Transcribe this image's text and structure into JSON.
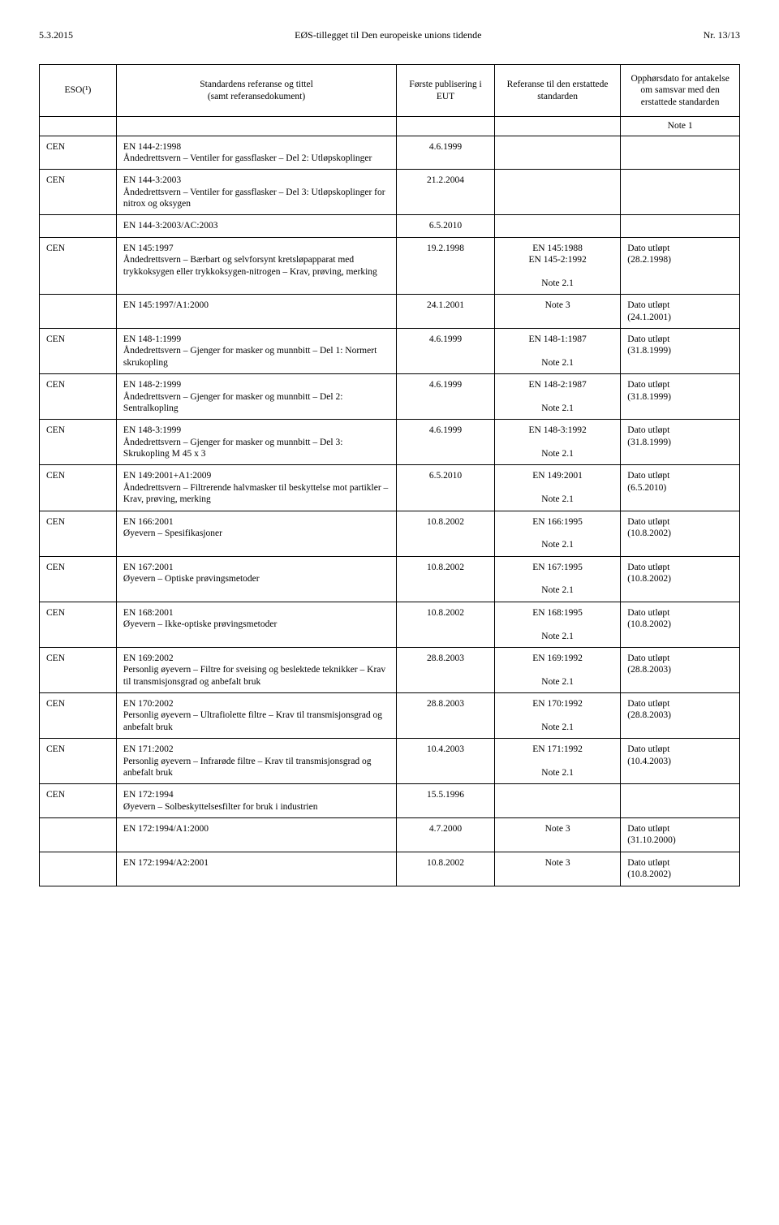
{
  "header": {
    "left": "5.3.2015",
    "center": "EØS-tillegget til Den europeiske unions tidende",
    "right": "Nr. 13/13"
  },
  "thead": {
    "c1": "ESO(¹)",
    "c2": "Standardens referanse og tittel\n(samt referansedokument)",
    "c3": "Første publisering i EUT",
    "c4": "Referanse til den erstattede standarden",
    "c5": "Opphørsdato for antakelse om samsvar med den erstattede standarden",
    "note1": "Note 1"
  },
  "rows": [
    {
      "sep": true,
      "c1": "CEN",
      "c2": "EN 144-2:1998\nÅndedrettsvern – Ventiler for gassflasker – Del 2: Utløpskoplinger",
      "c3": "4.6.1999",
      "c4": "",
      "c5": ""
    },
    {
      "sep": true,
      "c1": "CEN",
      "c2": "EN 144-3:2003\nÅndedrettsvern – Ventiler for gassflasker – Del 3: Utløpskoplinger for nitrox og oksygen",
      "c3": "21.2.2004",
      "c4": "",
      "c5": ""
    },
    {
      "sep": true,
      "c1": "",
      "c2": "EN 144-3:2003/AC:2003",
      "c3": "6.5.2010",
      "c4": "",
      "c5": ""
    },
    {
      "sep": true,
      "c1": "CEN",
      "c2": "EN 145:1997\nÅndedrettsvern – Bærbart og selvforsynt kretsløpapparat med trykkoksygen eller trykkoksygen-nitrogen – Krav, prøving, merking",
      "c3": "19.2.1998",
      "c4": "EN 145:1988\nEN 145-2:1992\n\nNote 2.1",
      "c5": "Dato utløpt\n(28.2.1998)"
    },
    {
      "sep": true,
      "c1": "",
      "c2": "EN 145:1997/A1:2000",
      "c3": "24.1.2001",
      "c4": "Note 3",
      "c5": "Dato utløpt\n(24.1.2001)"
    },
    {
      "sep": true,
      "c1": "CEN",
      "c2": "EN 148-1:1999\nÅndedrettsvern – Gjenger for masker og munnbitt – Del 1: Normert skrukopling",
      "c3": "4.6.1999",
      "c4": "EN 148-1:1987\n\nNote 2.1",
      "c5": "Dato utløpt\n(31.8.1999)"
    },
    {
      "sep": true,
      "c1": "CEN",
      "c2": "EN 148-2:1999\nÅndedrettsvern – Gjenger for masker og munnbitt – Del 2: Sentralkopling",
      "c3": "4.6.1999",
      "c4": "EN 148-2:1987\n\nNote 2.1",
      "c5": "Dato utløpt\n(31.8.1999)"
    },
    {
      "sep": true,
      "c1": "CEN",
      "c2": "EN 148-3:1999\nÅndedrettsvern – Gjenger for masker og munnbitt – Del 3: Skrukopling M 45 x 3",
      "c3": "4.6.1999",
      "c4": "EN 148-3:1992\n\nNote 2.1",
      "c5": "Dato utløpt\n(31.8.1999)"
    },
    {
      "sep": true,
      "c1": "CEN",
      "c2": "EN 149:2001+A1:2009\nÅndedrettsvern – Filtrerende halvmasker til beskyttelse mot partikler – Krav, prøving, merking",
      "c3": "6.5.2010",
      "c4": "EN 149:2001\n\nNote 2.1",
      "c5": "Dato utløpt\n(6.5.2010)"
    },
    {
      "sep": true,
      "c1": "CEN",
      "c2": "EN 166:2001\nØyevern – Spesifikasjoner",
      "c3": "10.8.2002",
      "c4": "EN 166:1995\n\nNote 2.1",
      "c5": "Dato utløpt\n(10.8.2002)"
    },
    {
      "sep": true,
      "c1": "CEN",
      "c2": "EN 167:2001\nØyevern – Optiske prøvingsmetoder",
      "c3": "10.8.2002",
      "c4": "EN 167:1995\n\nNote 2.1",
      "c5": "Dato utløpt\n(10.8.2002)"
    },
    {
      "sep": true,
      "c1": "CEN",
      "c2": "EN 168:2001\nØyevern – Ikke-optiske prøvingsmetoder",
      "c3": "10.8.2002",
      "c4": "EN 168:1995\n\nNote 2.1",
      "c5": "Dato utløpt\n(10.8.2002)"
    },
    {
      "sep": true,
      "c1": "CEN",
      "c2": "EN 169:2002\nPersonlig øyevern – Filtre for sveising og beslektede teknikker – Krav til transmisjonsgrad og anbefalt bruk",
      "c3": "28.8.2003",
      "c4": "EN 169:1992\n\nNote 2.1",
      "c5": "Dato utløpt\n(28.8.2003)"
    },
    {
      "sep": true,
      "c1": "CEN",
      "c2": "EN 170:2002\nPersonlig øyevern – Ultrafiolette filtre – Krav til transmisjonsgrad og anbefalt bruk",
      "c3": "28.8.2003",
      "c4": "EN 170:1992\n\nNote 2.1",
      "c5": "Dato utløpt\n(28.8.2003)"
    },
    {
      "sep": true,
      "c1": "CEN",
      "c2": "EN 171:2002\nPersonlig øyevern – Infrarøde filtre – Krav til transmisjonsgrad og anbefalt bruk",
      "c3": "10.4.2003",
      "c4": "EN 171:1992\n\nNote 2.1",
      "c5": "Dato utløpt\n(10.4.2003)"
    },
    {
      "sep": true,
      "c1": "CEN",
      "c2": "EN 172:1994\nØyevern – Solbeskyttelsesfilter for bruk i industrien",
      "c3": "15.5.1996",
      "c4": "",
      "c5": ""
    },
    {
      "sep": true,
      "c1": "",
      "c2": "EN 172:1994/A1:2000",
      "c3": "4.7.2000",
      "c4": "Note 3",
      "c5": "Dato utløpt\n(31.10.2000)"
    },
    {
      "sep": true,
      "last": true,
      "c1": "",
      "c2": "EN 172:1994/A2:2001",
      "c3": "10.8.2002",
      "c4": "Note 3",
      "c5": "Dato utløpt\n(10.8.2002)"
    }
  ]
}
